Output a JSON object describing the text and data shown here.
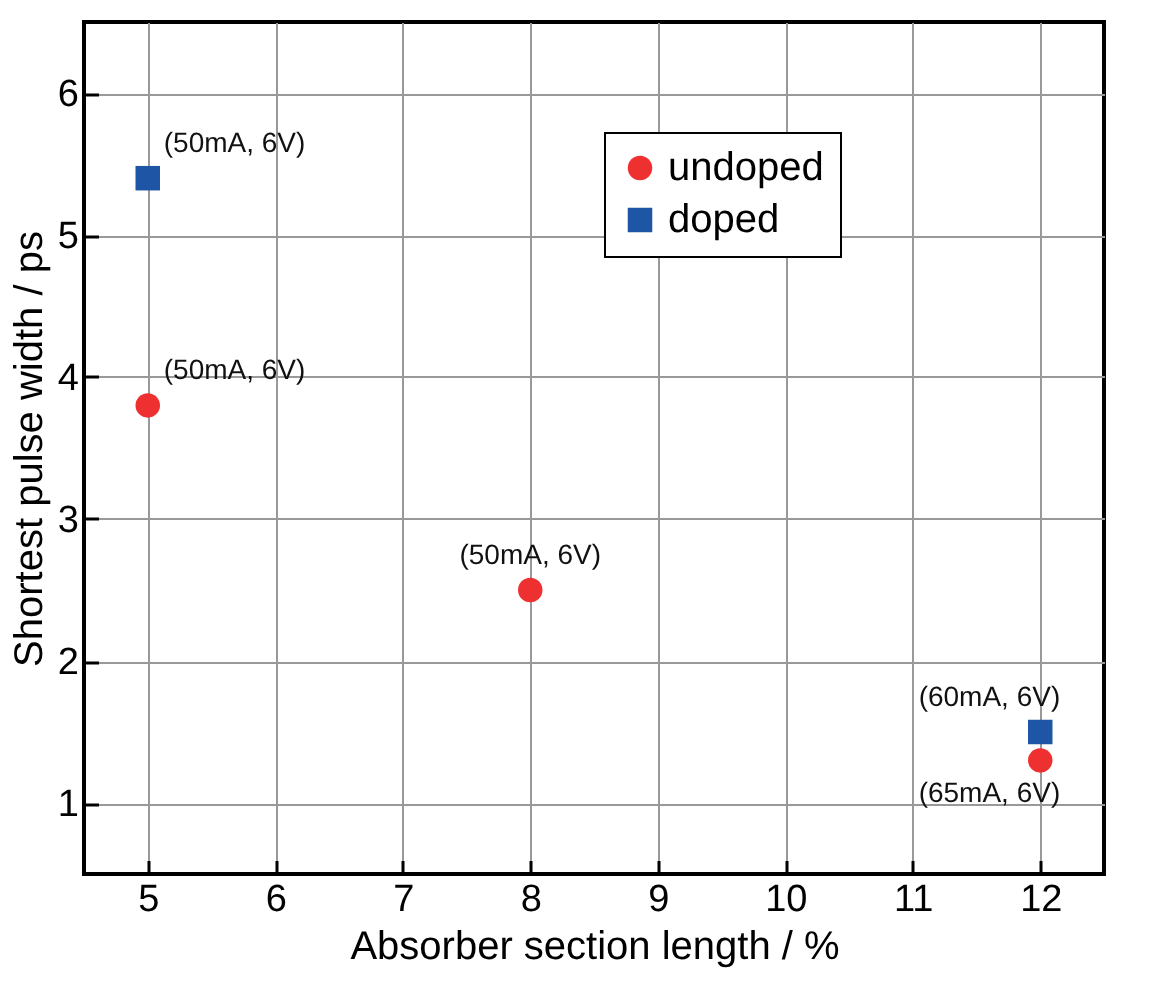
{
  "chart_data": {
    "type": "scatter",
    "xlabel": "Absorber section length / %",
    "ylabel": "Shortest pulse width / ps",
    "series": [
      {
        "name": "undoped",
        "color": "#ee3030",
        "marker": "circle",
        "x": [
          5,
          8,
          12
        ],
        "values": [
          3.8,
          2.5,
          1.3
        ]
      },
      {
        "name": "doped",
        "color": "#1f55a5",
        "marker": "square",
        "x": [
          5,
          12
        ],
        "values": [
          5.4,
          1.5
        ]
      }
    ],
    "annotations": [
      {
        "text": "(50mA, 6V)",
        "x": 5,
        "y": 5.4
      },
      {
        "text": "(50mA, 6V)",
        "x": 5,
        "y": 3.8
      },
      {
        "text": "(50mA, 6V)",
        "x": 8,
        "y": 2.5
      },
      {
        "text": "(60mA, 6V)",
        "x": 12,
        "y": 1.5
      },
      {
        "text": "(65mA, 6V)",
        "x": 12,
        "y": 1.3
      }
    ],
    "xlim": [
      4.5,
      12.5
    ],
    "xticks": [
      5,
      6,
      7,
      8,
      9,
      10,
      11,
      12
    ],
    "ylim": [
      0.5,
      6.5
    ],
    "yticks": [
      1,
      2,
      3,
      4,
      5,
      6
    ],
    "grid": true,
    "legend": "top right"
  }
}
